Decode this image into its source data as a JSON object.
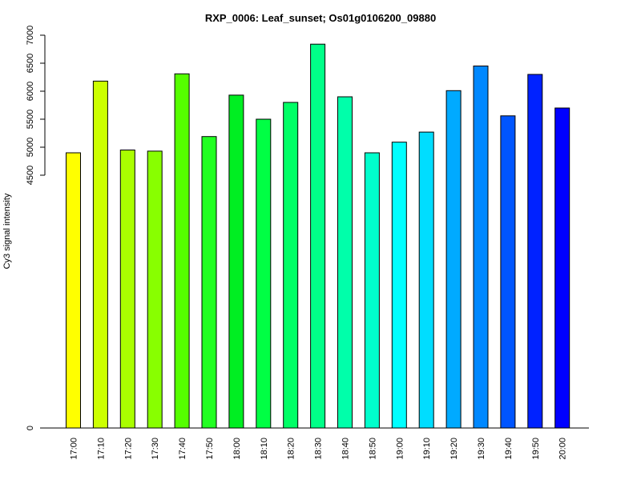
{
  "chart_data": {
    "type": "bar",
    "title": "RXP_0006: Leaf_sunset; Os01g0106200_09880",
    "xlabel": "",
    "ylabel": "Cy3 signal intensity",
    "categories": [
      "17:00",
      "17:10",
      "17:20",
      "17:30",
      "17:40",
      "17:50",
      "18:00",
      "18:10",
      "18:20",
      "18:30",
      "18:40",
      "18:50",
      "19:00",
      "19:10",
      "19:20",
      "19:30",
      "19:40",
      "19:50",
      "20:00"
    ],
    "values": [
      4900,
      6180,
      4950,
      4930,
      6310,
      5190,
      5930,
      5500,
      5800,
      6840,
      5900,
      4900,
      5090,
      5270,
      6010,
      6450,
      5560,
      6300,
      5700
    ],
    "colors": [
      "#ffff00",
      "#ccff00",
      "#aaff00",
      "#88ff00",
      "#55ff00",
      "#22ff22",
      "#00ee22",
      "#00ff44",
      "#00ff66",
      "#00ff88",
      "#00ffaa",
      "#00ffcc",
      "#00ffff",
      "#00ddff",
      "#00aaff",
      "#0088ff",
      "#0055ff",
      "#0022ff",
      "#0000ff"
    ],
    "yticks": [
      0,
      4500,
      5000,
      5500,
      6000,
      6500,
      7000
    ],
    "ylim": [
      0,
      7000
    ],
    "grid": false,
    "legend": "none"
  }
}
